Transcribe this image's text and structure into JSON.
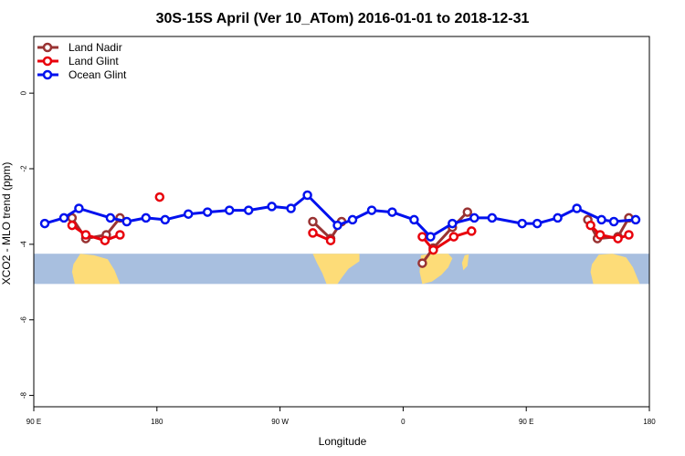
{
  "chart_data": {
    "type": "line",
    "title": "30S-15S April (Ver 10_ATom)   2016-01-01 to 2018-12-31",
    "xlabel": "Longitude",
    "ylabel": "XCO2 - MLO trend (ppm)",
    "xlim": [
      90,
      540
    ],
    "ylim": [
      -8.3,
      1.5
    ],
    "x_ticks": [
      {
        "value": 90,
        "label": "90 E"
      },
      {
        "value": 180,
        "label": "180"
      },
      {
        "value": 270,
        "label": "90 W"
      },
      {
        "value": 360,
        "label": "0"
      },
      {
        "value": 450,
        "label": "90 E"
      },
      {
        "value": 540,
        "label": "180"
      }
    ],
    "y_ticks": [
      {
        "value": 0,
        "label": "0"
      },
      {
        "value": -2,
        "label": "-2"
      },
      {
        "value": -4,
        "label": "-4"
      },
      {
        "value": -6,
        "label": "-6"
      },
      {
        "value": -8,
        "label": "-8"
      }
    ],
    "grid": false,
    "legend_position": "top-left",
    "map_band": {
      "y_top": -4.25,
      "y_bottom": -5.05,
      "ocean_color": "#a8bfdf",
      "land_color": "#fddc78"
    },
    "series": [
      {
        "name": "Land Nadir",
        "color": "#993333",
        "points": [
          [
            118,
            -3.3
          ],
          [
            128,
            -3.85
          ],
          [
            143,
            -3.75
          ],
          [
            153,
            -3.3
          ],
          [
            294,
            -3.4
          ],
          [
            307,
            -3.85
          ],
          [
            315,
            -3.4
          ],
          [
            374,
            -4.5
          ],
          [
            382,
            -4.1
          ],
          [
            396,
            -3.55
          ],
          [
            407,
            -3.15
          ],
          [
            495,
            -3.35
          ],
          [
            502,
            -3.85
          ],
          [
            517,
            -3.8
          ],
          [
            525,
            -3.3
          ]
        ],
        "breaks_after": [
          3,
          6,
          10
        ]
      },
      {
        "name": "Land Glint",
        "color": "#e8000b",
        "points": [
          [
            118,
            -3.5
          ],
          [
            128,
            -3.75
          ],
          [
            142,
            -3.9
          ],
          [
            153,
            -3.75
          ],
          [
            182,
            -2.75
          ],
          [
            294,
            -3.7
          ],
          [
            307,
            -3.9
          ],
          [
            374,
            -3.8
          ],
          [
            382,
            -4.15
          ],
          [
            397,
            -3.8
          ],
          [
            410,
            -3.65
          ],
          [
            497,
            -3.5
          ],
          [
            504,
            -3.75
          ],
          [
            517,
            -3.85
          ],
          [
            525,
            -3.75
          ]
        ],
        "breaks_after": [
          3,
          4,
          6,
          10
        ]
      },
      {
        "name": "Ocean Glint",
        "color": "#0011ee",
        "points": [
          [
            98,
            -3.45
          ],
          [
            112,
            -3.3
          ],
          [
            123,
            -3.05
          ],
          [
            146,
            -3.3
          ],
          [
            158,
            -3.4
          ],
          [
            172,
            -3.3
          ],
          [
            186,
            -3.35
          ],
          [
            203,
            -3.2
          ],
          [
            217,
            -3.15
          ],
          [
            233,
            -3.1
          ],
          [
            247,
            -3.1
          ],
          [
            264,
            -3.0
          ],
          [
            278,
            -3.05
          ],
          [
            290,
            -2.7
          ],
          [
            312,
            -3.5
          ],
          [
            323,
            -3.35
          ],
          [
            337,
            -3.1
          ],
          [
            352,
            -3.15
          ],
          [
            368,
            -3.35
          ],
          [
            380,
            -3.8
          ],
          [
            396,
            -3.45
          ],
          [
            412,
            -3.3
          ],
          [
            425,
            -3.3
          ],
          [
            447,
            -3.45
          ],
          [
            458,
            -3.45
          ],
          [
            473,
            -3.3
          ],
          [
            487,
            -3.05
          ],
          [
            505,
            -3.35
          ],
          [
            514,
            -3.4
          ],
          [
            530,
            -3.35
          ]
        ],
        "breaks_after": []
      }
    ]
  }
}
